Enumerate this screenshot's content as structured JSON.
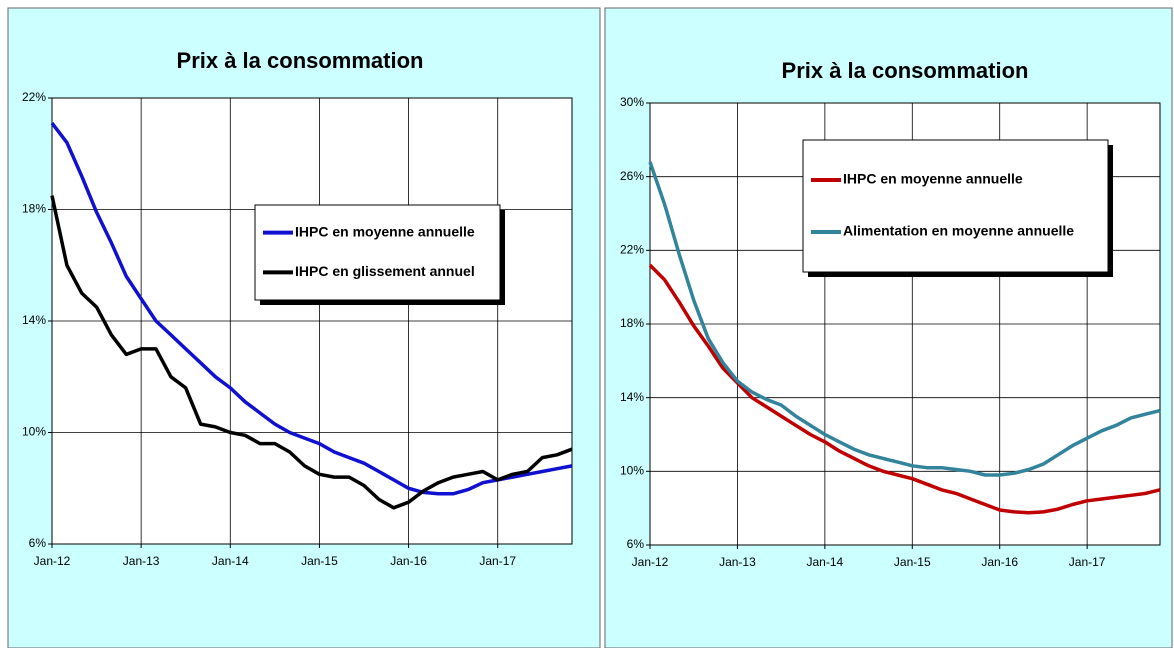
{
  "chart_data": [
    {
      "type": "line",
      "title": "Prix à la consommation",
      "categories": [
        "Jan-12",
        null,
        null,
        null,
        null,
        null,
        "Jan-13",
        null,
        null,
        null,
        null,
        null,
        "Jan-14",
        null,
        null,
        null,
        null,
        null,
        "Jan-15",
        null,
        null,
        null,
        null,
        null,
        "Jan-16",
        null,
        null,
        null,
        null,
        null,
        "Jan-17",
        null,
        null,
        null,
        null,
        null
      ],
      "ylim": [
        6,
        22
      ],
      "yticks": [
        {
          "value": 6,
          "label": "6%"
        },
        {
          "value": 10,
          "label": "10%"
        },
        {
          "value": 14,
          "label": "14%"
        },
        {
          "value": 18,
          "label": "18%"
        },
        {
          "value": 22,
          "label": "22%"
        }
      ],
      "grid": true,
      "series": [
        {
          "name": "IHPC en moyenne annuelle",
          "color": "#1010d0",
          "values": [
            21.1,
            20.4,
            19.2,
            17.9,
            16.8,
            15.6,
            14.8,
            14.0,
            13.5,
            13.0,
            12.5,
            12.0,
            11.6,
            11.1,
            10.7,
            10.3,
            10.0,
            9.8,
            9.6,
            9.3,
            9.1,
            8.9,
            8.6,
            8.3,
            8.0,
            7.85,
            7.8,
            7.8,
            7.95,
            8.2,
            8.3,
            8.4,
            8.5,
            8.6,
            8.7,
            8.8
          ]
        },
        {
          "name": "IHPC en glissement annuel",
          "color": "#000000",
          "values": [
            18.5,
            16.0,
            15.0,
            14.5,
            13.5,
            12.8,
            13.0,
            13.0,
            12.0,
            11.6,
            10.3,
            10.2,
            10.0,
            9.9,
            9.6,
            9.6,
            9.3,
            8.8,
            8.5,
            8.4,
            8.4,
            8.1,
            7.6,
            7.3,
            7.5,
            7.9,
            8.2,
            8.4,
            8.5,
            8.6,
            8.3,
            8.5,
            8.6,
            9.1,
            9.2,
            9.4
          ]
        }
      ]
    },
    {
      "type": "line",
      "title": "Prix à la consommation",
      "categories": [
        "Jan-12",
        null,
        null,
        null,
        null,
        null,
        "Jan-13",
        null,
        null,
        null,
        null,
        null,
        "Jan-14",
        null,
        null,
        null,
        null,
        null,
        "Jan-15",
        null,
        null,
        null,
        null,
        null,
        "Jan-16",
        null,
        null,
        null,
        null,
        null,
        "Jan-17",
        null,
        null,
        null,
        null,
        null
      ],
      "ylim": [
        6,
        30
      ],
      "yticks": [
        {
          "value": 6,
          "label": "6%"
        },
        {
          "value": 10,
          "label": "10%"
        },
        {
          "value": 14,
          "label": "14%"
        },
        {
          "value": 18,
          "label": "18%"
        },
        {
          "value": 22,
          "label": "22%"
        },
        {
          "value": 26,
          "label": "26%"
        },
        {
          "value": 30,
          "label": "30%"
        }
      ],
      "grid": true,
      "series": [
        {
          "name": "IHPC en moyenne annuelle",
          "color": "#c00000",
          "values": [
            21.2,
            20.4,
            19.2,
            17.9,
            16.8,
            15.6,
            14.8,
            14.0,
            13.5,
            13.0,
            12.5,
            12.0,
            11.6,
            11.1,
            10.7,
            10.3,
            10.0,
            9.8,
            9.6,
            9.3,
            9.0,
            8.8,
            8.5,
            8.2,
            7.9,
            7.8,
            7.75,
            7.8,
            7.95,
            8.2,
            8.4,
            8.5,
            8.6,
            8.7,
            8.8,
            9.0
          ]
        },
        {
          "name": "Alimentation en moyenne annuelle",
          "color": "#31849b",
          "values": [
            26.8,
            24.5,
            21.8,
            19.3,
            17.2,
            15.9,
            14.9,
            14.3,
            13.9,
            13.6,
            13.0,
            12.5,
            12.0,
            11.6,
            11.2,
            10.9,
            10.7,
            10.5,
            10.3,
            10.2,
            10.2,
            10.1,
            10.0,
            9.8,
            9.8,
            9.9,
            10.1,
            10.4,
            10.9,
            11.4,
            11.8,
            12.2,
            12.5,
            12.9,
            13.1,
            13.3
          ]
        }
      ]
    }
  ]
}
